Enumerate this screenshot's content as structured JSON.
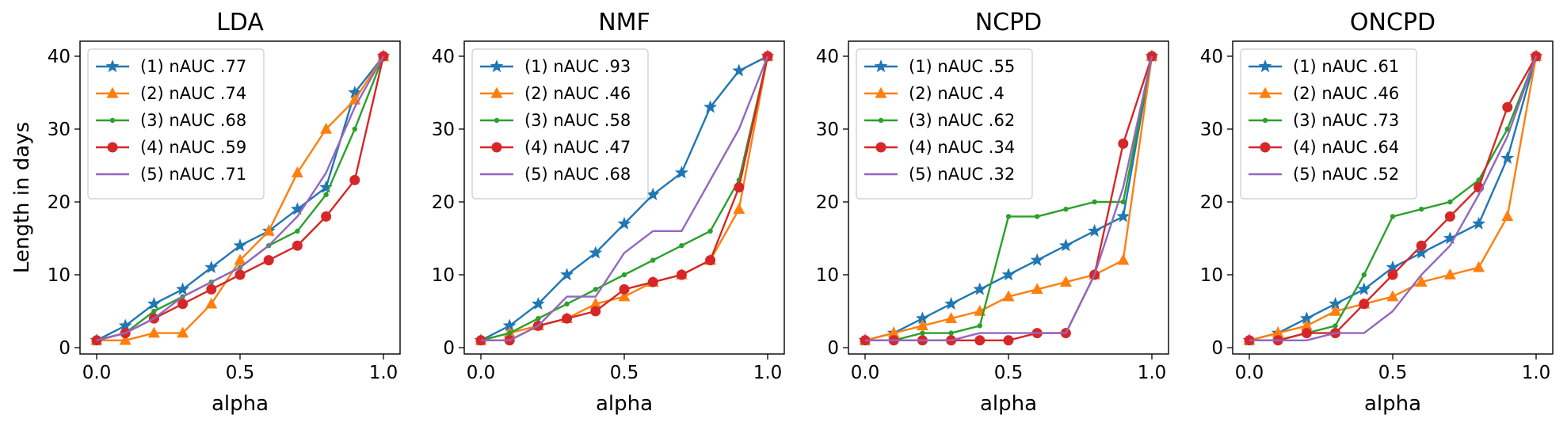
{
  "figure": {
    "ylabel": "Length in days",
    "colors": [
      "#1f77b4",
      "#ff7f0e",
      "#2ca02c",
      "#d62728",
      "#9467bd"
    ],
    "markers": [
      "star",
      "triangle",
      "dot",
      "circle",
      "none"
    ]
  },
  "chart_data": [
    {
      "type": "line",
      "title": "LDA",
      "xlabel": "alpha",
      "ylabel": "Length in days",
      "xlim": [
        0,
        1
      ],
      "ylim": [
        0,
        40
      ],
      "xticks": [
        "0.0",
        "0.5",
        "1.0"
      ],
      "yticks": [
        "0",
        "10",
        "20",
        "30",
        "40"
      ],
      "legend_position": "top-left",
      "x": [
        0.0,
        0.1,
        0.2,
        0.3,
        0.4,
        0.5,
        0.6,
        0.7,
        0.8,
        0.9,
        1.0
      ],
      "series": [
        {
          "name": "(1) nAUC .77",
          "values": [
            1,
            3,
            6,
            8,
            11,
            14,
            16,
            19,
            22,
            35,
            40
          ]
        },
        {
          "name": "(2) nAUC .74",
          "values": [
            1,
            1,
            2,
            2,
            6,
            12,
            16,
            24,
            30,
            34,
            40
          ]
        },
        {
          "name": "(3) nAUC .68",
          "values": [
            1,
            2,
            5,
            7,
            9,
            11,
            14,
            16,
            21,
            30,
            40
          ]
        },
        {
          "name": "(4) nAUC .59",
          "values": [
            1,
            2,
            4,
            6,
            8,
            10,
            12,
            14,
            18,
            23,
            40
          ]
        },
        {
          "name": "(5) nAUC .71",
          "values": [
            1,
            2,
            4,
            7,
            9,
            11,
            14,
            18,
            24,
            33,
            40
          ]
        }
      ]
    },
    {
      "type": "line",
      "title": "NMF",
      "xlabel": "alpha",
      "xlim": [
        0,
        1
      ],
      "ylim": [
        0,
        40
      ],
      "xticks": [
        "0.0",
        "0.5",
        "1.0"
      ],
      "yticks": [
        "0",
        "10",
        "20",
        "30",
        "40"
      ],
      "legend_position": "top-left",
      "x": [
        0.0,
        0.1,
        0.2,
        0.3,
        0.4,
        0.5,
        0.6,
        0.7,
        0.8,
        0.9,
        1.0
      ],
      "series": [
        {
          "name": "(1) nAUC .93",
          "values": [
            1,
            3,
            6,
            10,
            13,
            17,
            21,
            24,
            33,
            38,
            40
          ]
        },
        {
          "name": "(2) nAUC .46",
          "values": [
            1,
            2,
            3,
            4,
            6,
            7,
            9,
            10,
            12,
            19,
            40
          ]
        },
        {
          "name": "(3) nAUC .58",
          "values": [
            1,
            2,
            4,
            6,
            8,
            10,
            12,
            14,
            16,
            23,
            40
          ]
        },
        {
          "name": "(4) nAUC .47",
          "values": [
            1,
            1,
            3,
            4,
            5,
            8,
            9,
            10,
            12,
            22,
            40
          ]
        },
        {
          "name": "(5) nAUC .68",
          "values": [
            1,
            1,
            3,
            7,
            7,
            13,
            16,
            16,
            23,
            30,
            40
          ]
        }
      ]
    },
    {
      "type": "line",
      "title": "NCPD",
      "xlabel": "alpha",
      "xlim": [
        0,
        1
      ],
      "ylim": [
        0,
        40
      ],
      "xticks": [
        "0.0",
        "0.5",
        "1.0"
      ],
      "yticks": [
        "0",
        "10",
        "20",
        "30",
        "40"
      ],
      "legend_position": "top-left",
      "x": [
        0.0,
        0.1,
        0.2,
        0.3,
        0.4,
        0.5,
        0.6,
        0.7,
        0.8,
        0.9,
        1.0
      ],
      "series": [
        {
          "name": "(1) nAUC .55",
          "values": [
            1,
            2,
            4,
            6,
            8,
            10,
            12,
            14,
            16,
            18,
            40
          ]
        },
        {
          "name": "(2) nAUC .4",
          "values": [
            1,
            2,
            3,
            4,
            5,
            7,
            8,
            9,
            10,
            12,
            40
          ]
        },
        {
          "name": "(3) nAUC .62",
          "values": [
            1,
            1,
            2,
            2,
            3,
            18,
            18,
            19,
            20,
            20,
            40
          ]
        },
        {
          "name": "(4) nAUC .34",
          "values": [
            1,
            1,
            1,
            1,
            1,
            1,
            2,
            2,
            10,
            28,
            40
          ]
        },
        {
          "name": "(5) nAUC .32",
          "values": [
            1,
            1,
            1,
            1,
            2,
            2,
            2,
            2,
            10,
            22,
            40
          ]
        }
      ]
    },
    {
      "type": "line",
      "title": "ONCPD",
      "xlabel": "alpha",
      "xlim": [
        0,
        1
      ],
      "ylim": [
        0,
        40
      ],
      "xticks": [
        "0.0",
        "0.5",
        "1.0"
      ],
      "yticks": [
        "0",
        "10",
        "20",
        "30",
        "40"
      ],
      "legend_position": "top-left",
      "x": [
        0.0,
        0.1,
        0.2,
        0.3,
        0.4,
        0.5,
        0.6,
        0.7,
        0.8,
        0.9,
        1.0
      ],
      "series": [
        {
          "name": "(1) nAUC .61",
          "values": [
            1,
            2,
            4,
            6,
            8,
            11,
            13,
            15,
            17,
            26,
            40
          ]
        },
        {
          "name": "(2) nAUC .46",
          "values": [
            1,
            2,
            3,
            5,
            6,
            7,
            9,
            10,
            11,
            18,
            40
          ]
        },
        {
          "name": "(3) nAUC .73",
          "values": [
            1,
            1,
            2,
            3,
            10,
            18,
            19,
            20,
            23,
            30,
            40
          ]
        },
        {
          "name": "(4) nAUC .64",
          "values": [
            1,
            1,
            2,
            2,
            6,
            10,
            14,
            18,
            22,
            33,
            40
          ]
        },
        {
          "name": "(5) nAUC .52",
          "values": [
            1,
            1,
            1,
            2,
            2,
            5,
            10,
            14,
            21,
            29,
            40
          ]
        }
      ]
    }
  ]
}
